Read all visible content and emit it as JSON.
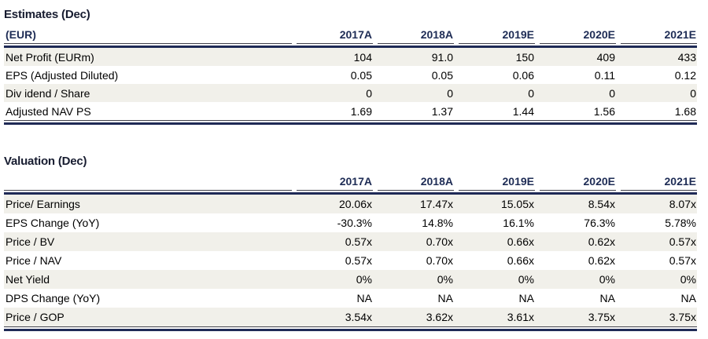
{
  "colors": {
    "accent_navy": "#1f2a56",
    "header_text_navy": "#1e2c55",
    "title_navy_black": "#171c30",
    "row_shade": "#f1f0ea",
    "thin_rule": "#40404a",
    "background": "#ffffff"
  },
  "tables": [
    {
      "title": "Estimates (Dec)",
      "unit_label": "(EUR)",
      "columns": [
        "2017A",
        "2018A",
        "2019E",
        "2020E",
        "2021E"
      ],
      "rows": [
        {
          "label": "Net Profit (EURm)",
          "values": [
            "104",
            "91.0",
            "150",
            "409",
            "433"
          ]
        },
        {
          "label": "EPS (Adjusted Diluted)",
          "values": [
            "0.05",
            "0.05",
            "0.06",
            "0.11",
            "0.12"
          ]
        },
        {
          "label": "Div idend / Share",
          "values": [
            "0",
            "0",
            "0",
            "0",
            "0"
          ]
        },
        {
          "label": "Adjusted NAV PS",
          "values": [
            "1.69",
            "1.37",
            "1.44",
            "1.56",
            "1.68"
          ]
        }
      ]
    },
    {
      "title": "Valuation (Dec)",
      "unit_label": "",
      "columns": [
        "2017A",
        "2018A",
        "2019E",
        "2020E",
        "2021E"
      ],
      "rows": [
        {
          "label": "Price/ Earnings",
          "values": [
            "20.06x",
            "17.47x",
            "15.05x",
            "8.54x",
            "8.07x"
          ]
        },
        {
          "label": "EPS Change (YoY)",
          "values": [
            "-30.3%",
            "14.8%",
            "16.1%",
            "76.3%",
            "5.78%"
          ]
        },
        {
          "label": "Price / BV",
          "values": [
            "0.57x",
            "0.70x",
            "0.66x",
            "0.62x",
            "0.57x"
          ]
        },
        {
          "label": "Price / NAV",
          "values": [
            "0.57x",
            "0.70x",
            "0.66x",
            "0.62x",
            "0.57x"
          ]
        },
        {
          "label": "Net Yield",
          "values": [
            "0%",
            "0%",
            "0%",
            "0%",
            "0%"
          ]
        },
        {
          "label": "DPS Change (YoY)",
          "values": [
            "NA",
            "NA",
            "NA",
            "NA",
            "NA"
          ]
        },
        {
          "label": "Price / GOP",
          "values": [
            "3.54x",
            "3.62x",
            "3.61x",
            "3.75x",
            "3.75x"
          ]
        }
      ]
    }
  ]
}
